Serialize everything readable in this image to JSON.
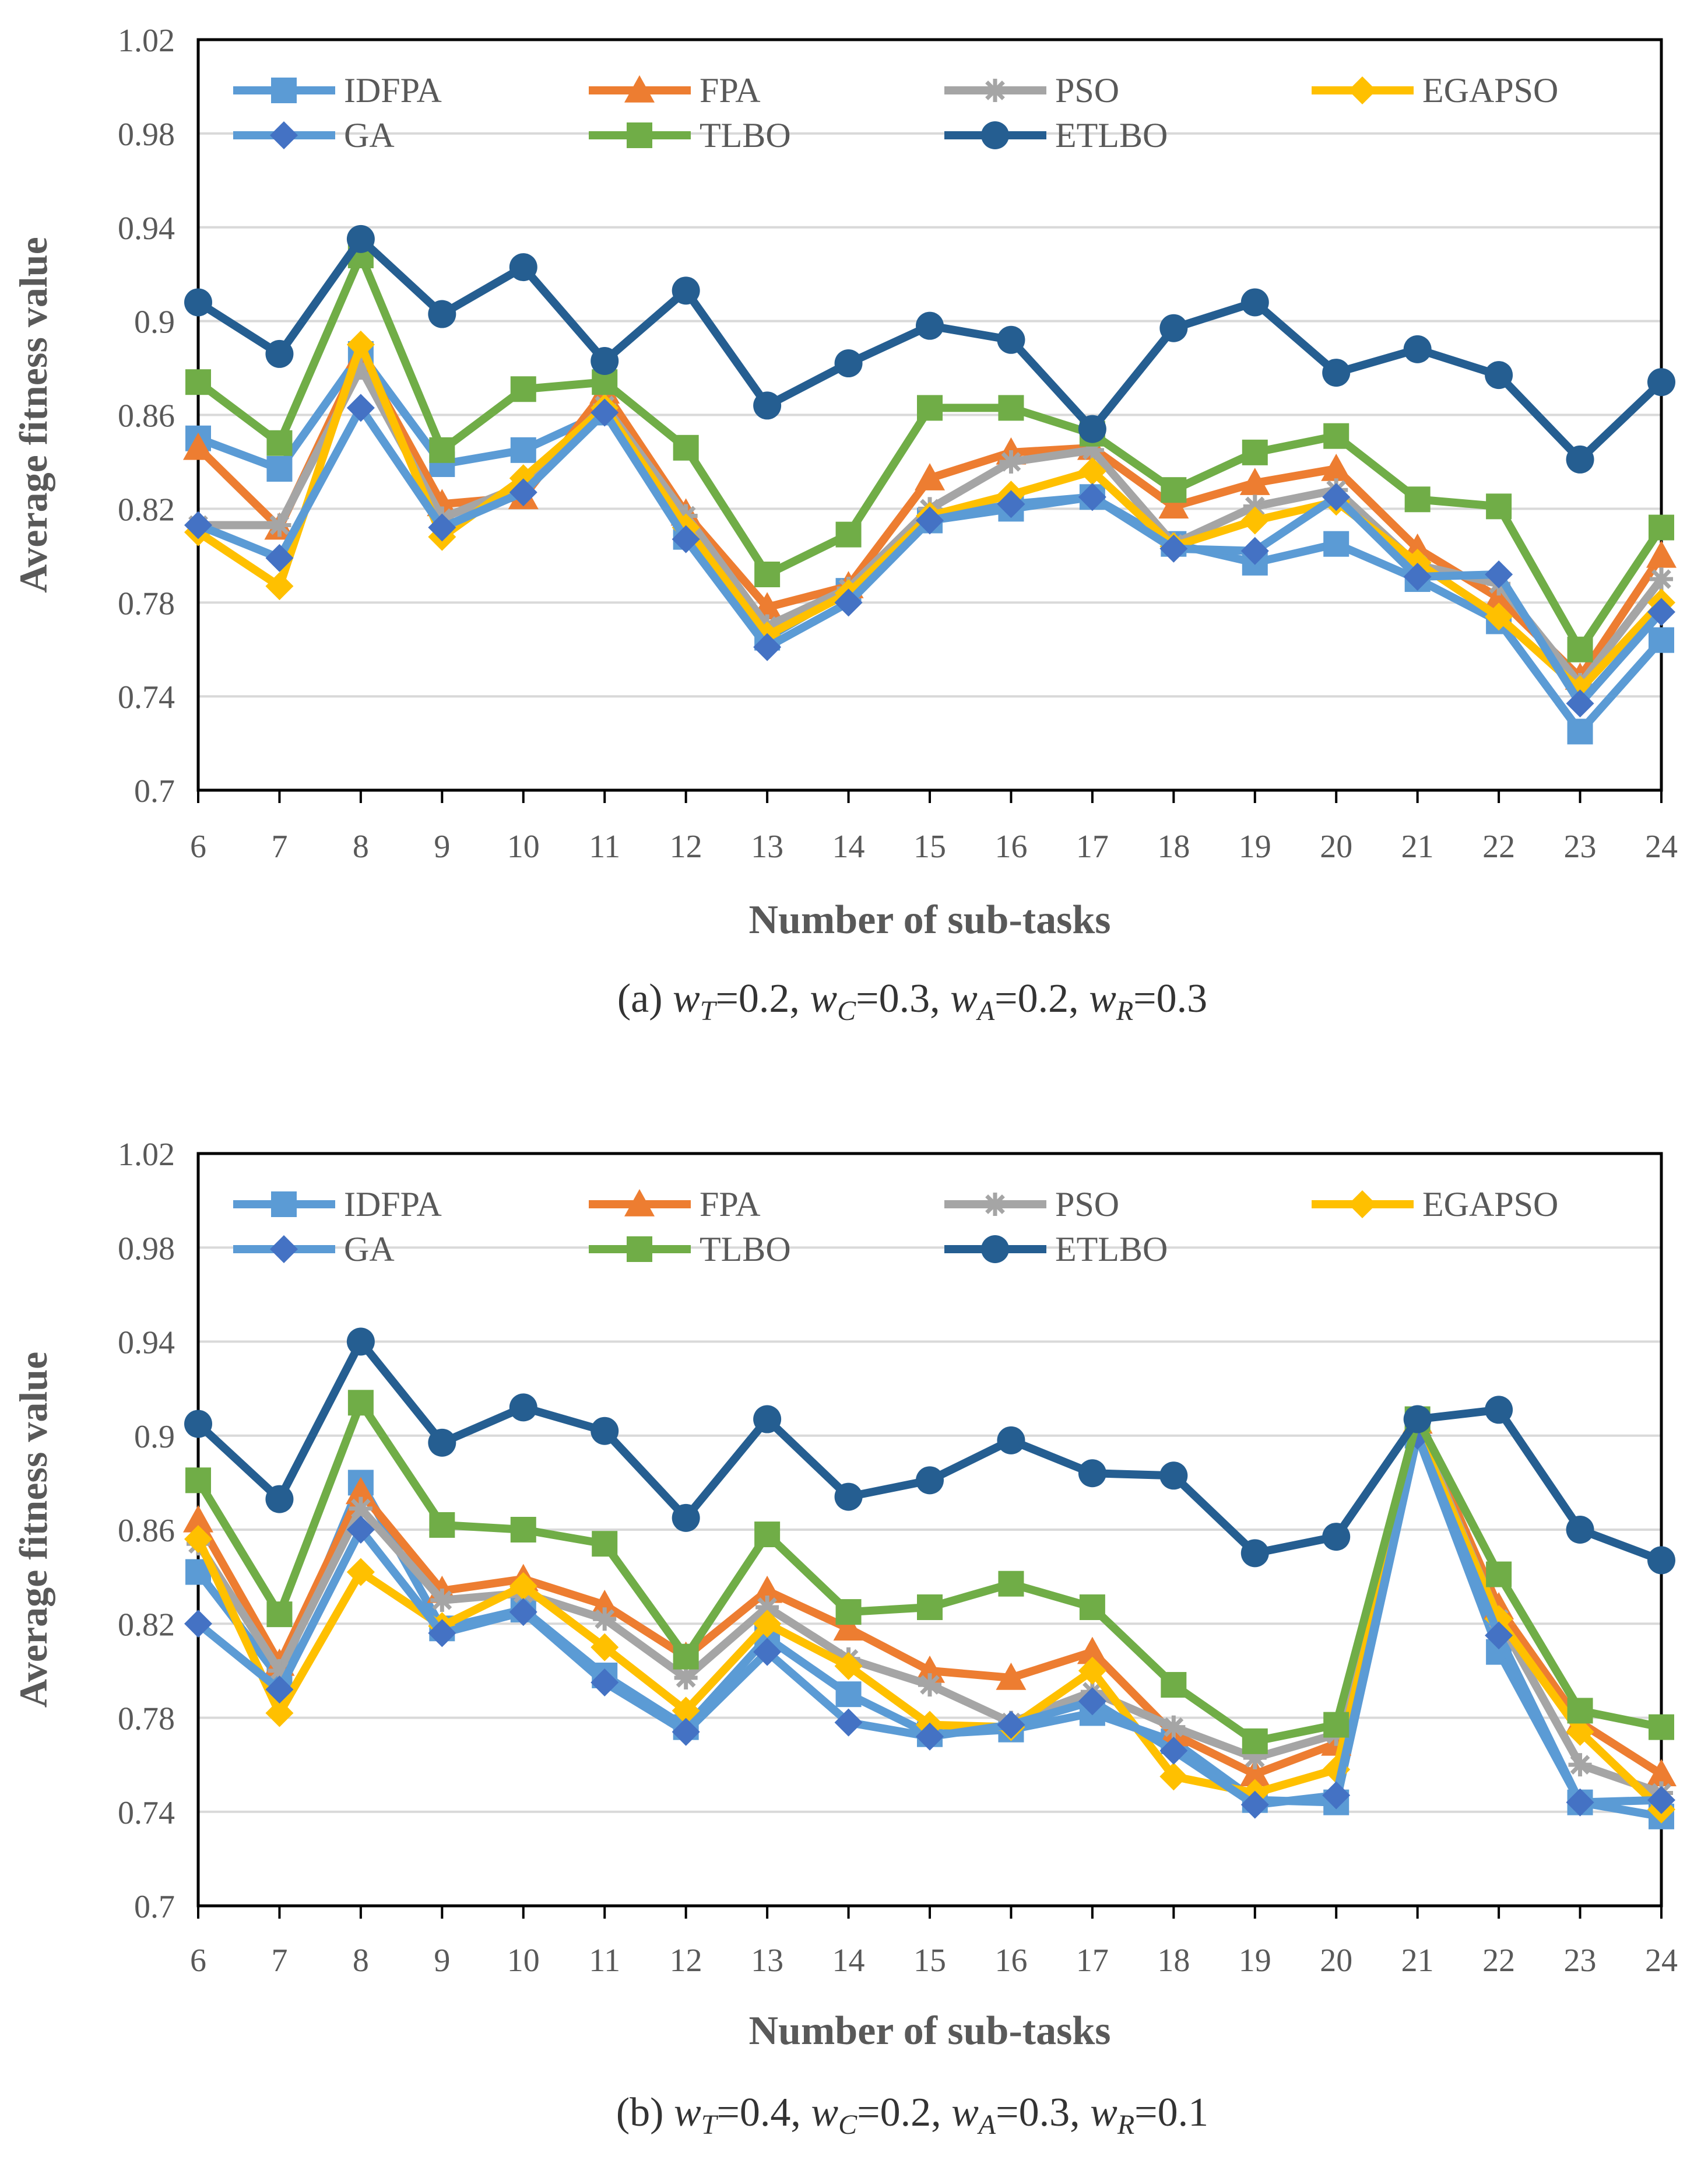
{
  "chart_data": [
    {
      "type": "line",
      "caption": {
        "prefix": "(a) ",
        "terms": [
          {
            "v": "w",
            "s": "T",
            "val": "=0.2"
          },
          {
            "v": "w",
            "s": "C",
            "val": "=0.3"
          },
          {
            "v": "w",
            "s": "A",
            "val": "=0.2"
          },
          {
            "v": "w",
            "s": "R",
            "val": "=0.3"
          }
        ]
      },
      "xlabel": "Number of sub-tasks",
      "ylabel": "Average fitness value",
      "ylim": [
        0.7,
        1.02
      ],
      "yticks": [
        "0.7",
        "0.74",
        "0.78",
        "0.82",
        "0.86",
        "0.9",
        "0.94",
        "0.98",
        "1.02"
      ],
      "grid": true,
      "legend": "top",
      "categories": [
        "6",
        "7",
        "8",
        "9",
        "10",
        "11",
        "12",
        "13",
        "14",
        "15",
        "16",
        "17",
        "18",
        "19",
        "20",
        "21",
        "22",
        "23",
        "24"
      ],
      "series": [
        {
          "name": "IDFPA",
          "color": "#5b9bd5",
          "marker": "square",
          "values": [
            0.85,
            0.837,
            0.886,
            0.839,
            0.845,
            0.861,
            0.808,
            0.765,
            0.785,
            0.815,
            0.82,
            0.825,
            0.805,
            0.797,
            0.805,
            0.79,
            0.772,
            0.725,
            0.764
          ]
        },
        {
          "name": "FPA",
          "color": "#ed7d31",
          "marker": "triangle",
          "values": [
            0.846,
            0.812,
            0.885,
            0.822,
            0.825,
            0.87,
            0.818,
            0.778,
            0.787,
            0.833,
            0.844,
            0.846,
            0.821,
            0.831,
            0.837,
            0.803,
            0.782,
            0.748,
            0.8
          ]
        },
        {
          "name": "PSO",
          "color": "#a5a5a5",
          "marker": "star",
          "values": [
            0.813,
            0.813,
            0.88,
            0.816,
            0.83,
            0.864,
            0.817,
            0.77,
            0.786,
            0.82,
            0.84,
            0.845,
            0.805,
            0.821,
            0.828,
            0.796,
            0.788,
            0.745,
            0.79
          ]
        },
        {
          "name": "EGAPSO",
          "color": "#ffc000",
          "marker": "diamond",
          "values": [
            0.81,
            0.787,
            0.89,
            0.808,
            0.833,
            0.863,
            0.812,
            0.766,
            0.784,
            0.817,
            0.826,
            0.836,
            0.804,
            0.815,
            0.823,
            0.797,
            0.774,
            0.743,
            0.78
          ]
        },
        {
          "name": "GA",
          "color": "#4472c4",
          "line_color": "#5b9bd5",
          "marker": "diamond",
          "values": [
            0.813,
            0.799,
            0.863,
            0.812,
            0.827,
            0.861,
            0.807,
            0.761,
            0.78,
            0.815,
            0.822,
            0.825,
            0.803,
            0.802,
            0.825,
            0.791,
            0.792,
            0.737,
            0.776
          ]
        },
        {
          "name": "TLBO",
          "color": "#70ad47",
          "marker": "square",
          "values": [
            0.874,
            0.848,
            0.928,
            0.845,
            0.871,
            0.874,
            0.846,
            0.792,
            0.809,
            0.863,
            0.863,
            0.852,
            0.828,
            0.844,
            0.851,
            0.824,
            0.821,
            0.76,
            0.812
          ]
        },
        {
          "name": "ETLBO",
          "color": "#255e91",
          "marker": "circle",
          "values": [
            0.908,
            0.886,
            0.935,
            0.903,
            0.923,
            0.883,
            0.913,
            0.864,
            0.882,
            0.898,
            0.892,
            0.854,
            0.897,
            0.908,
            0.878,
            0.888,
            0.877,
            0.841,
            0.874
          ]
        }
      ]
    },
    {
      "type": "line",
      "caption": {
        "prefix": "(b) ",
        "terms": [
          {
            "v": "w",
            "s": "T",
            "val": "=0.4"
          },
          {
            "v": "w",
            "s": "C",
            "val": "=0.2"
          },
          {
            "v": "w",
            "s": "A",
            "val": "=0.3"
          },
          {
            "v": "w",
            "s": "R",
            "val": "=0.1"
          }
        ]
      },
      "xlabel": "Number of sub-tasks",
      "ylabel": "Average fitness value",
      "ylim": [
        0.7,
        1.02
      ],
      "yticks": [
        "0.7",
        "0.74",
        "0.78",
        "0.82",
        "0.86",
        "0.9",
        "0.94",
        "0.98",
        "1.02"
      ],
      "grid": true,
      "legend": "top",
      "categories": [
        "6",
        "7",
        "8",
        "9",
        "10",
        "11",
        "12",
        "13",
        "14",
        "15",
        "16",
        "17",
        "18",
        "19",
        "20",
        "21",
        "22",
        "23",
        "24"
      ],
      "series": [
        {
          "name": "IDFPA",
          "color": "#5b9bd5",
          "marker": "square",
          "values": [
            0.842,
            0.797,
            0.88,
            0.818,
            0.826,
            0.798,
            0.776,
            0.814,
            0.79,
            0.773,
            0.775,
            0.782,
            0.77,
            0.745,
            0.744,
            0.9,
            0.808,
            0.744,
            0.738
          ]
        },
        {
          "name": "FPA",
          "color": "#ed7d31",
          "marker": "triangle",
          "values": [
            0.864,
            0.803,
            0.876,
            0.834,
            0.839,
            0.828,
            0.806,
            0.834,
            0.818,
            0.8,
            0.797,
            0.808,
            0.773,
            0.756,
            0.769,
            0.906,
            0.827,
            0.778,
            0.756
          ]
        },
        {
          "name": "PSO",
          "color": "#a5a5a5",
          "marker": "star",
          "values": [
            0.854,
            0.8,
            0.869,
            0.83,
            0.833,
            0.822,
            0.797,
            0.827,
            0.805,
            0.794,
            0.778,
            0.791,
            0.776,
            0.763,
            0.773,
            0.904,
            0.822,
            0.76,
            0.748
          ]
        },
        {
          "name": "EGAPSO",
          "color": "#ffc000",
          "marker": "diamond",
          "values": [
            0.856,
            0.782,
            0.842,
            0.819,
            0.836,
            0.81,
            0.783,
            0.82,
            0.802,
            0.777,
            0.776,
            0.8,
            0.755,
            0.748,
            0.758,
            0.902,
            0.822,
            0.774,
            0.741
          ]
        },
        {
          "name": "GA",
          "color": "#4472c4",
          "line_color": "#5b9bd5",
          "marker": "diamond",
          "values": [
            0.82,
            0.792,
            0.86,
            0.816,
            0.825,
            0.795,
            0.774,
            0.808,
            0.778,
            0.772,
            0.777,
            0.787,
            0.766,
            0.743,
            0.747,
            0.9,
            0.815,
            0.744,
            0.745
          ]
        },
        {
          "name": "TLBO",
          "color": "#70ad47",
          "marker": "square",
          "values": [
            0.881,
            0.824,
            0.914,
            0.862,
            0.86,
            0.854,
            0.806,
            0.858,
            0.825,
            0.827,
            0.837,
            0.827,
            0.794,
            0.77,
            0.777,
            0.907,
            0.841,
            0.783,
            0.776
          ]
        },
        {
          "name": "ETLBO",
          "color": "#255e91",
          "marker": "circle",
          "values": [
            0.905,
            0.873,
            0.94,
            0.897,
            0.912,
            0.902,
            0.865,
            0.907,
            0.874,
            0.881,
            0.898,
            0.884,
            0.883,
            0.85,
            0.857,
            0.907,
            0.911,
            0.86,
            0.847
          ]
        }
      ]
    }
  ]
}
